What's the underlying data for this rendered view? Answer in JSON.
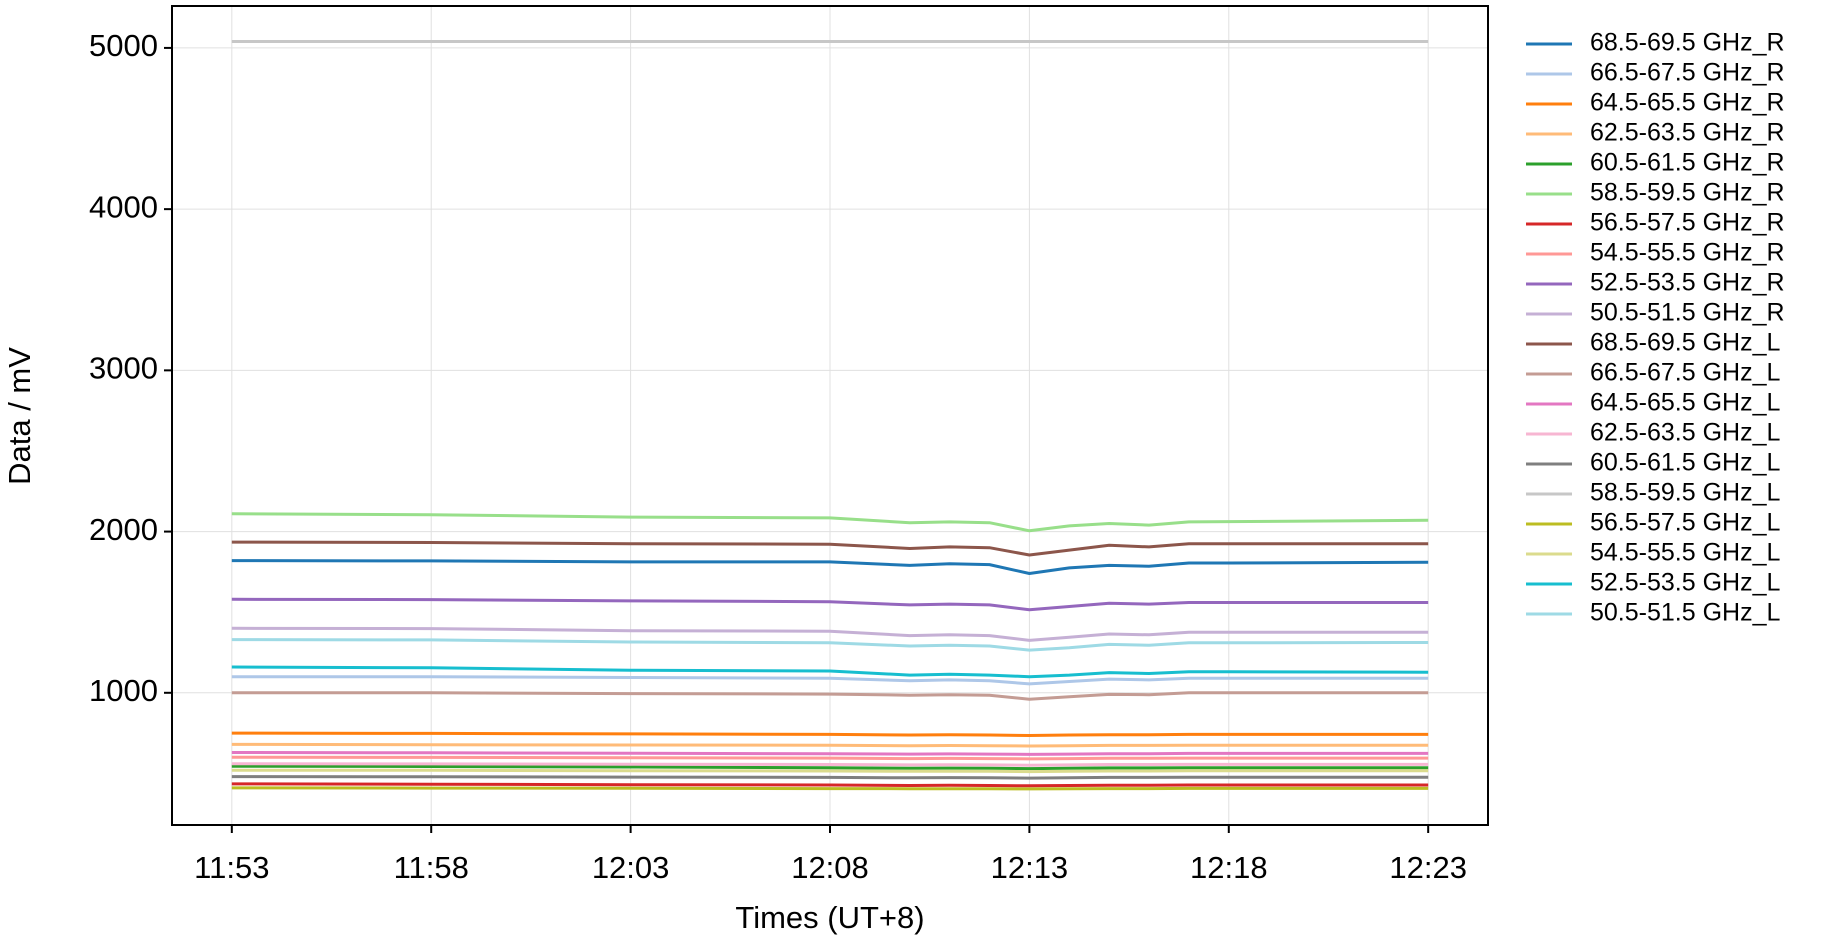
{
  "chart_data": {
    "type": "line",
    "x_label": "Times (UT+8)",
    "y_label": "Data / mV",
    "x": [
      "11:53",
      "11:58",
      "12:03",
      "12:08",
      "12:10",
      "12:11",
      "12:12",
      "12:13",
      "12:14",
      "12:15",
      "12:16",
      "12:17",
      "12:18",
      "12:23"
    ],
    "xticks": [
      "11:53",
      "11:58",
      "12:03",
      "12:08",
      "12:13",
      "12:18",
      "12:23"
    ],
    "ylim": [
      180,
      5260
    ],
    "yticks": [
      1000,
      2000,
      3000,
      4000,
      5000
    ],
    "grid": true,
    "legend_position": "right",
    "series": [
      {
        "name": "68.5-69.5 GHz_R",
        "color": "#1f77b4",
        "values": [
          1820,
          1818,
          1812,
          1812,
          1790,
          1800,
          1795,
          1740,
          1775,
          1790,
          1785,
          1805,
          1805,
          1810
        ]
      },
      {
        "name": "66.5-67.5 GHz_R",
        "color": "#aec7e8",
        "values": [
          1100,
          1100,
          1095,
          1090,
          1075,
          1080,
          1075,
          1055,
          1070,
          1085,
          1080,
          1090,
          1090,
          1090
        ]
      },
      {
        "name": "64.5-65.5 GHz_R",
        "color": "#ff7f0e",
        "values": [
          750,
          748,
          745,
          742,
          738,
          740,
          738,
          735,
          738,
          740,
          740,
          742,
          742,
          742
        ]
      },
      {
        "name": "62.5-63.5 GHz_R",
        "color": "#ffbb78",
        "values": [
          680,
          678,
          676,
          675,
          672,
          673,
          672,
          670,
          672,
          674,
          674,
          675,
          675,
          675
        ]
      },
      {
        "name": "60.5-61.5 GHz_R",
        "color": "#2ca02c",
        "values": [
          545,
          543,
          540,
          535,
          532,
          533,
          532,
          530,
          532,
          534,
          534,
          535,
          535,
          535
        ]
      },
      {
        "name": "58.5-59.5 GHz_R",
        "color": "#98df8a",
        "values": [
          2110,
          2105,
          2090,
          2085,
          2055,
          2060,
          2055,
          2005,
          2035,
          2050,
          2040,
          2060,
          2062,
          2070
        ]
      },
      {
        "name": "56.5-57.5 GHz_R",
        "color": "#d62728",
        "values": [
          435,
          433,
          430,
          428,
          425,
          426,
          425,
          423,
          425,
          427,
          427,
          428,
          428,
          428
        ]
      },
      {
        "name": "54.5-55.5 GHz_R",
        "color": "#ff9896",
        "values": [
          600,
          599,
          597,
          595,
          592,
          593,
          592,
          590,
          592,
          594,
          594,
          595,
          595,
          595
        ]
      },
      {
        "name": "52.5-53.5 GHz_R",
        "color": "#9467bd",
        "values": [
          1580,
          1578,
          1570,
          1565,
          1545,
          1550,
          1545,
          1515,
          1535,
          1555,
          1550,
          1560,
          1560,
          1560
        ]
      },
      {
        "name": "50.5-51.5 GHz_R",
        "color": "#c5b0d5",
        "values": [
          1400,
          1398,
          1385,
          1382,
          1355,
          1360,
          1355,
          1325,
          1345,
          1365,
          1360,
          1375,
          1375,
          1375
        ]
      },
      {
        "name": "68.5-69.5 GHz_L",
        "color": "#8c564b",
        "values": [
          1935,
          1932,
          1925,
          1922,
          1895,
          1905,
          1900,
          1855,
          1885,
          1915,
          1905,
          1925,
          1925,
          1925
        ]
      },
      {
        "name": "66.5-67.5 GHz_L",
        "color": "#c49c94",
        "values": [
          1000,
          1000,
          995,
          992,
          985,
          988,
          985,
          960,
          975,
          990,
          988,
          1000,
          1000,
          1000
        ]
      },
      {
        "name": "64.5-65.5 GHz_L",
        "color": "#e377c2",
        "values": [
          630,
          628,
          625,
          622,
          620,
          621,
          620,
          618,
          620,
          622,
          622,
          624,
          624,
          624
        ]
      },
      {
        "name": "62.5-63.5 GHz_L",
        "color": "#f7b6d2",
        "values": [
          560,
          559,
          557,
          555,
          553,
          554,
          553,
          551,
          553,
          555,
          555,
          556,
          556,
          556
        ]
      },
      {
        "name": "60.5-61.5 GHz_L",
        "color": "#7f7f7f",
        "values": [
          480,
          479,
          477,
          475,
          473,
          474,
          473,
          471,
          473,
          475,
          475,
          476,
          476,
          476
        ]
      },
      {
        "name": "58.5-59.5 GHz_L",
        "color": "#c7c7c7",
        "values": [
          5040,
          5040,
          5040,
          5040,
          5040,
          5040,
          5040,
          5040,
          5040,
          5040,
          5040,
          5040,
          5040,
          5040
        ]
      },
      {
        "name": "56.5-57.5 GHz_L",
        "color": "#bcbd22",
        "values": [
          410,
          409,
          408,
          406,
          405,
          405,
          405,
          404,
          405,
          406,
          406,
          407,
          407,
          407
        ]
      },
      {
        "name": "54.5-55.5 GHz_L",
        "color": "#dbdb8d",
        "values": [
          520,
          519,
          517,
          515,
          513,
          514,
          513,
          511,
          513,
          515,
          515,
          516,
          516,
          516
        ]
      },
      {
        "name": "52.5-53.5 GHz_L",
        "color": "#17becf",
        "values": [
          1160,
          1155,
          1140,
          1135,
          1110,
          1115,
          1110,
          1100,
          1110,
          1125,
          1120,
          1130,
          1130,
          1128
        ]
      },
      {
        "name": "50.5-51.5 GHz_L",
        "color": "#9edae5",
        "values": [
          1330,
          1328,
          1315,
          1310,
          1290,
          1295,
          1290,
          1265,
          1280,
          1300,
          1295,
          1310,
          1310,
          1312
        ]
      }
    ]
  }
}
